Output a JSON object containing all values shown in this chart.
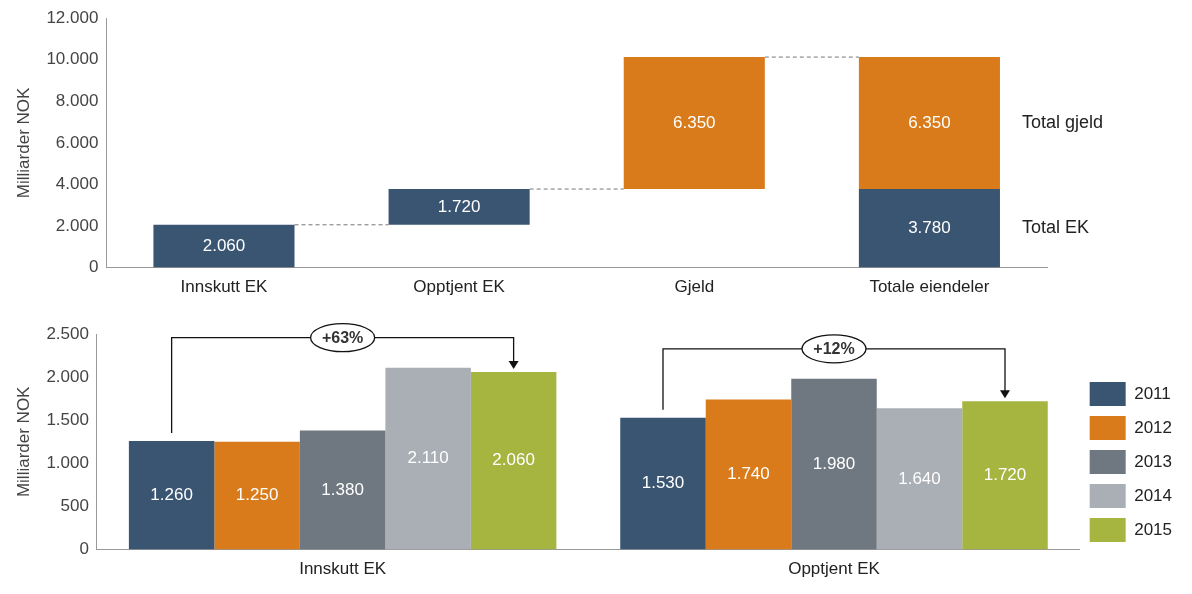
{
  "chart_data": [
    {
      "type": "bar",
      "ylabel": "Milliarder NOK",
      "categories": [
        "Innskutt EK",
        "Opptjent EK",
        "Gjeld",
        "Totale eiendeler"
      ],
      "series": [
        {
          "color": "#3a5572",
          "values": [
            2060,
            1720,
            null,
            3780
          ],
          "base": [
            0,
            2060,
            null,
            0
          ],
          "value_labels": [
            "2.060",
            "1.720",
            null,
            "3.780"
          ]
        },
        {
          "color": "#d97b1a",
          "values": [
            null,
            null,
            6350,
            6350
          ],
          "base": [
            null,
            null,
            3780,
            3780
          ],
          "value_labels": [
            null,
            null,
            "6.350",
            "6.350"
          ]
        }
      ],
      "ylim": [
        0,
        12000
      ],
      "yticks": [
        {
          "value": 0,
          "label": "0"
        },
        {
          "value": 2000,
          "label": "2.000"
        },
        {
          "value": 4000,
          "label": "4.000"
        },
        {
          "value": 6000,
          "label": "6.000"
        },
        {
          "value": 8000,
          "label": "8.000"
        },
        {
          "value": 10000,
          "label": "10.000"
        },
        {
          "value": 12000,
          "label": "12.000"
        }
      ],
      "annotations": [
        "Total gjeld",
        "Total EK"
      ],
      "ref_lines": [
        {
          "axis": "y",
          "value": 2060,
          "color": "#777777",
          "line_style": "dashed"
        },
        {
          "axis": "y",
          "value": 3780,
          "color": "#777777",
          "line_style": "dashed"
        },
        {
          "axis": "y",
          "value": 10130,
          "color": "#777777",
          "line_style": "dashed"
        }
      ],
      "grid": false,
      "legend": false
    },
    {
      "type": "bar",
      "ylabel": "Milliarder NOK",
      "categories": [
        "Innskutt EK",
        "Opptjent EK"
      ],
      "series": [
        {
          "name": "2011",
          "color": "#3a5572",
          "values": [
            1260,
            1530
          ],
          "value_labels": [
            "1.260",
            "1.530"
          ]
        },
        {
          "name": "2012",
          "color": "#d97b1a",
          "values": [
            1250,
            1740
          ],
          "value_labels": [
            "1.250",
            "1.740"
          ]
        },
        {
          "name": "2013",
          "color": "#6f7880",
          "values": [
            1380,
            1980
          ],
          "value_labels": [
            "1.380",
            "1.980"
          ]
        },
        {
          "name": "2014",
          "color": "#a9afb5",
          "values": [
            2110,
            1640
          ],
          "value_labels": [
            "2.110",
            "1.640"
          ]
        },
        {
          "name": "2015",
          "color": "#a5b540",
          "values": [
            2060,
            1720
          ],
          "value_labels": [
            "2.060",
            "1.720"
          ]
        }
      ],
      "ylim": [
        0,
        2500
      ],
      "yticks": [
        {
          "value": 0,
          "label": "0"
        },
        {
          "value": 500,
          "label": "500"
        },
        {
          "value": 1000,
          "label": "1.000"
        },
        {
          "value": 1500,
          "label": "1.500"
        },
        {
          "value": 2000,
          "label": "2.000"
        },
        {
          "value": 2500,
          "label": "2.500"
        }
      ],
      "annotations": [
        "+63%",
        "+12%"
      ],
      "grid": false,
      "legend": "right"
    }
  ]
}
